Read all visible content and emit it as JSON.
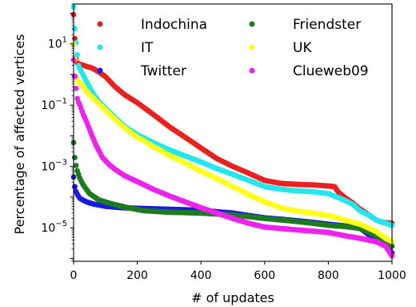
{
  "chart_data": {
    "type": "scatter",
    "xlabel": "# of updates",
    "ylabel": "Percentage of affected vertices",
    "xlim": [
      0,
      1000
    ],
    "ylim": [
      8e-07,
      200
    ],
    "yscale": "log",
    "grid": false,
    "legend": {
      "placement": "top",
      "columns": 2
    },
    "x_ticks": [
      {
        "value": 0,
        "label": "0"
      },
      {
        "value": 200,
        "label": "200"
      },
      {
        "value": 400,
        "label": "400"
      },
      {
        "value": 600,
        "label": "600"
      },
      {
        "value": 800,
        "label": "800"
      },
      {
        "value": 1000,
        "label": "1000"
      }
    ],
    "y_ticks": [
      {
        "value": 10,
        "base": "10",
        "exp": "1"
      },
      {
        "value": 0.1,
        "base": "10",
        "exp": "−1"
      },
      {
        "value": 0.001,
        "base": "10",
        "exp": "−3"
      },
      {
        "value": 1e-05,
        "base": "10",
        "exp": "−5"
      }
    ],
    "series": [
      {
        "name": "Indochina",
        "color": "#e8221e",
        "points": [
          [
            0,
            90
          ],
          [
            3,
            25
          ],
          [
            6,
            4.0
          ],
          [
            12,
            2.3
          ],
          [
            30,
            2.0
          ],
          [
            60,
            1.6
          ],
          [
            80,
            1.2
          ],
          [
            100,
            0.85
          ],
          [
            130,
            0.4
          ],
          [
            160,
            0.22
          ],
          [
            200,
            0.12
          ],
          [
            250,
            0.05
          ],
          [
            300,
            0.02
          ],
          [
            350,
            0.009
          ],
          [
            400,
            0.004
          ],
          [
            450,
            0.0018
          ],
          [
            500,
            0.001
          ],
          [
            550,
            0.0006
          ],
          [
            600,
            0.00035
          ],
          [
            650,
            0.00028
          ],
          [
            700,
            0.00026
          ],
          [
            750,
            0.00025
          ],
          [
            800,
            0.00023
          ],
          [
            820,
            0.00022
          ],
          [
            830,
            0.00015
          ],
          [
            850,
            0.0001
          ],
          [
            880,
            6e-05
          ],
          [
            900,
            4e-05
          ],
          [
            930,
            2.5e-05
          ],
          [
            950,
            1.8e-05
          ],
          [
            970,
            1.5e-05
          ],
          [
            1000,
            1.4e-05
          ]
        ]
      },
      {
        "name": "IT",
        "color": "#22e8ee",
        "points": [
          [
            0,
            160
          ],
          [
            3,
            40
          ],
          [
            8,
            10
          ],
          [
            15,
            2.0
          ],
          [
            25,
            1.2
          ],
          [
            40,
            0.6
          ],
          [
            60,
            0.25
          ],
          [
            80,
            0.13
          ],
          [
            100,
            0.08
          ],
          [
            130,
            0.04
          ],
          [
            160,
            0.02
          ],
          [
            200,
            0.011
          ],
          [
            250,
            0.006
          ],
          [
            300,
            0.0035
          ],
          [
            350,
            0.0022
          ],
          [
            400,
            0.0014
          ],
          [
            450,
            0.00085
          ],
          [
            500,
            0.00055
          ],
          [
            550,
            0.00035
          ],
          [
            600,
            0.00022
          ],
          [
            650,
            0.00018
          ],
          [
            700,
            0.00016
          ],
          [
            750,
            0.00015
          ],
          [
            800,
            0.00013
          ],
          [
            850,
            8e-05
          ],
          [
            880,
            5.5e-05
          ],
          [
            900,
            3.5e-05
          ],
          [
            930,
            2.5e-05
          ],
          [
            950,
            1.8e-05
          ],
          [
            980,
            1.4e-05
          ],
          [
            1000,
            1.2e-05
          ]
        ]
      },
      {
        "name": "Twitter",
        "color": "#1a1ae6",
        "points": [
          [
            0,
            0.00045
          ],
          [
            2,
            0.0003
          ],
          [
            5,
            0.00018
          ],
          [
            10,
            0.00013
          ],
          [
            20,
            9e-05
          ],
          [
            40,
            7e-05
          ],
          [
            60,
            6e-05
          ],
          [
            100,
            5e-05
          ],
          [
            150,
            4.5e-05
          ],
          [
            200,
            4.3e-05
          ],
          [
            300,
            4e-05
          ],
          [
            400,
            3.7e-05
          ],
          [
            500,
            3e-05
          ],
          [
            550,
            2.5e-05
          ],
          [
            600,
            2.1e-05
          ],
          [
            650,
            1.9e-05
          ],
          [
            700,
            1.7e-05
          ],
          [
            750,
            1.5e-05
          ],
          [
            800,
            1.3e-05
          ],
          [
            850,
            1.15e-05
          ],
          [
            900,
            9.5e-06
          ],
          [
            950,
            4e-06
          ],
          [
            980,
            2.5e-06
          ],
          [
            1000,
            1.5e-06
          ]
        ]
      },
      {
        "name": "Friendster",
        "color": "#1e7a1e",
        "points": [
          [
            0,
            0.006
          ],
          [
            2,
            0.003
          ],
          [
            5,
            0.0015
          ],
          [
            10,
            0.0008
          ],
          [
            20,
            0.0004
          ],
          [
            30,
            0.00025
          ],
          [
            50,
            0.00013
          ],
          [
            80,
            8e-05
          ],
          [
            120,
            6e-05
          ],
          [
            170,
            4.5e-05
          ],
          [
            220,
            3.6e-05
          ],
          [
            300,
            3.2e-05
          ],
          [
            400,
            3e-05
          ],
          [
            450,
            2.8e-05
          ],
          [
            500,
            2.6e-05
          ],
          [
            550,
            2.3e-05
          ],
          [
            600,
            2e-05
          ],
          [
            650,
            1.8e-05
          ],
          [
            700,
            1.6e-05
          ],
          [
            750,
            1.4e-05
          ],
          [
            800,
            1.2e-05
          ],
          [
            850,
            1.1e-05
          ],
          [
            900,
            9.5e-06
          ],
          [
            950,
            5.5e-06
          ],
          [
            980,
            3.5e-06
          ],
          [
            1000,
            2.5e-06
          ]
        ]
      },
      {
        "name": "UK",
        "color": "#ffff1a",
        "points": [
          [
            0,
            10
          ],
          [
            4,
            3
          ],
          [
            8,
            0.8
          ],
          [
            15,
            0.6
          ],
          [
            30,
            0.4
          ],
          [
            50,
            0.22
          ],
          [
            80,
            0.11
          ],
          [
            100,
            0.07
          ],
          [
            130,
            0.035
          ],
          [
            160,
            0.018
          ],
          [
            200,
            0.009
          ],
          [
            250,
            0.0045
          ],
          [
            300,
            0.0023
          ],
          [
            350,
            0.0013
          ],
          [
            400,
            0.0007
          ],
          [
            450,
            0.0004
          ],
          [
            500,
            0.00022
          ],
          [
            550,
            0.00012
          ],
          [
            600,
            7e-05
          ],
          [
            650,
            4.5e-05
          ],
          [
            700,
            3.5e-05
          ],
          [
            750,
            3e-05
          ],
          [
            800,
            2.5e-05
          ],
          [
            850,
            1.8e-05
          ],
          [
            900,
            1.3e-05
          ],
          [
            950,
            7.5e-06
          ],
          [
            980,
            4.5e-06
          ],
          [
            1000,
            3.5e-06
          ]
        ]
      },
      {
        "name": "Clueweb09",
        "color": "#ee22ee",
        "points": [
          [
            0,
            3
          ],
          [
            5,
            0.6
          ],
          [
            12,
            0.15
          ],
          [
            20,
            0.1
          ],
          [
            30,
            0.05
          ],
          [
            40,
            0.03
          ],
          [
            55,
            0.012
          ],
          [
            70,
            0.005
          ],
          [
            90,
            0.002
          ],
          [
            110,
            0.0012
          ],
          [
            130,
            0.0008
          ],
          [
            160,
            0.0005
          ],
          [
            200,
            0.00032
          ],
          [
            250,
            0.00018
          ],
          [
            300,
            0.00011
          ],
          [
            350,
            7e-05
          ],
          [
            400,
            4.5e-05
          ],
          [
            450,
            3e-05
          ],
          [
            500,
            2e-05
          ],
          [
            550,
            1.4e-05
          ],
          [
            600,
            1.05e-05
          ],
          [
            700,
            8.5e-06
          ],
          [
            800,
            7e-06
          ],
          [
            850,
            5.5e-06
          ],
          [
            900,
            4.5e-06
          ],
          [
            950,
            3.5e-06
          ],
          [
            980,
            2.5e-06
          ],
          [
            1000,
            1.2e-06
          ]
        ]
      }
    ]
  }
}
